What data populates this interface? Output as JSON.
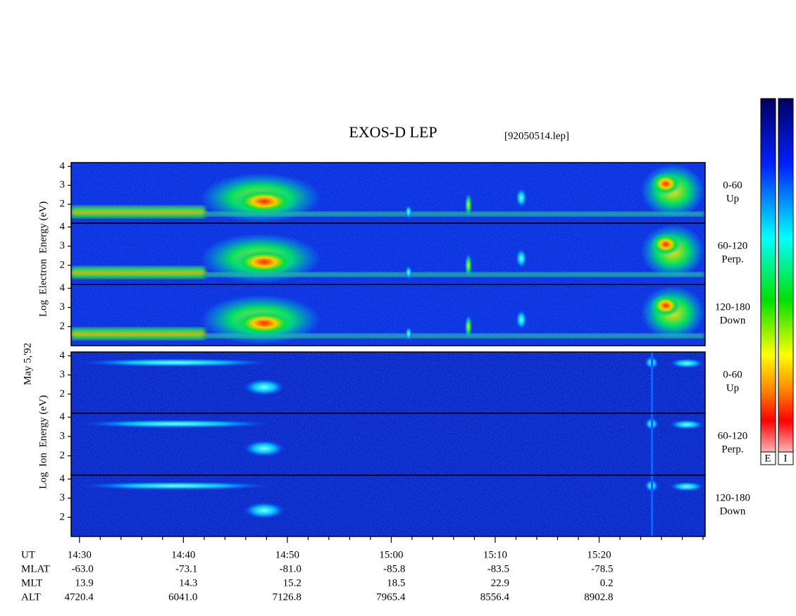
{
  "title": "EXOS-D LEP",
  "file": "[92050514.lep]",
  "date": "May 5,'92",
  "electron_axis_label": "Log  Electron  Energy (eV)",
  "ion_axis_label": "Log  Ion  Energy (eV)",
  "ylim": [
    1,
    4.2
  ],
  "yticks": [
    2,
    3,
    4
  ],
  "xlim": [
    29.2,
    90.2
  ],
  "xticks": [
    {
      "value": 30,
      "label": "14:30"
    },
    {
      "value": 40,
      "label": "14:40"
    },
    {
      "value": 50,
      "label": "14:50"
    },
    {
      "value": 60,
      "label": "15:00"
    },
    {
      "value": 70,
      "label": "15:10"
    },
    {
      "value": 80,
      "label": "15:20"
    }
  ],
  "xminorticks": [
    32,
    34,
    36,
    38,
    42,
    44,
    46,
    48,
    52,
    54,
    56,
    58,
    62,
    64,
    66,
    68,
    72,
    74,
    76,
    78,
    82,
    84,
    86,
    88,
    90
  ],
  "panels": [
    {
      "species": "electron",
      "label": [
        "0-60",
        "Up"
      ]
    },
    {
      "species": "electron",
      "label": [
        "60-120",
        "Perp."
      ]
    },
    {
      "species": "electron",
      "label": [
        "120-180",
        "Down"
      ]
    },
    {
      "species": "ion",
      "label": [
        "0-60",
        "Up"
      ]
    },
    {
      "species": "ion",
      "label": [
        "60-120",
        "Perp."
      ]
    },
    {
      "species": "ion",
      "label": [
        "120-180",
        "Down"
      ]
    }
  ],
  "footer": [
    {
      "name": "UT",
      "values": []
    },
    {
      "name": "MLAT",
      "values": [
        "-63.0",
        "-73.1",
        "-81.0",
        "-85.8",
        "-83.5",
        "-78.5"
      ]
    },
    {
      "name": "MLT",
      "values": [
        "13.9",
        "14.3",
        "15.2",
        "18.5",
        "22.9",
        "0.2"
      ]
    },
    {
      "name": "ALT",
      "values": [
        "4720.4",
        "6041.0",
        "7126.8",
        "7965.4",
        "8556.4",
        "8902.8"
      ]
    }
  ],
  "colorbar_labels": [
    "E",
    "I"
  ]
}
